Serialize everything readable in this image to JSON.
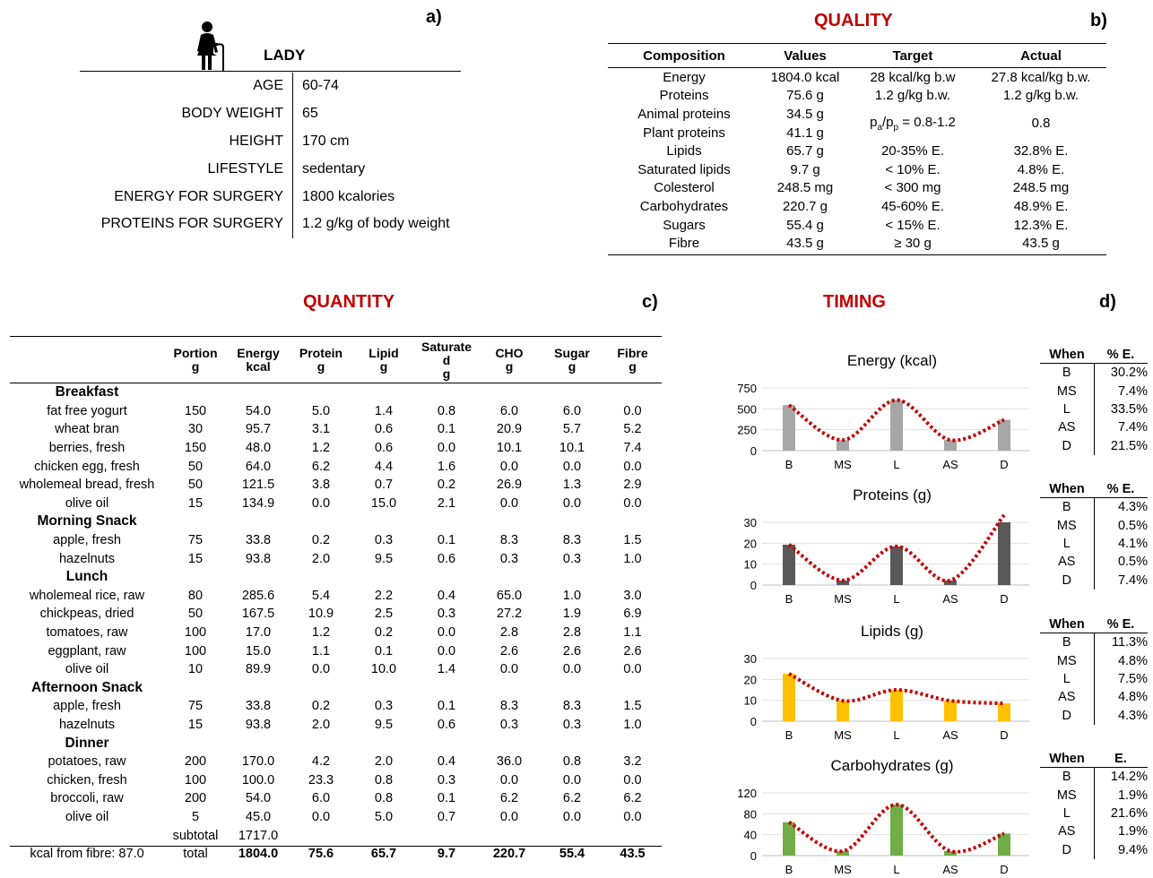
{
  "panel_a": {
    "letter": "a)",
    "title": "LADY",
    "rows": [
      {
        "key": "AGE",
        "value": "60-74"
      },
      {
        "key": "BODY WEIGHT",
        "value": "65"
      },
      {
        "key": "HEIGHT",
        "value": "170 cm"
      },
      {
        "key": "LIFESTYLE",
        "value": "sedentary"
      },
      {
        "key": "ENERGY FOR SURGERY",
        "value": "1800 kcalories"
      },
      {
        "key": "PROTEINS FOR SURGERY",
        "value": "1.2 g/kg of body weight"
      }
    ]
  },
  "panel_b": {
    "letter": "b)",
    "title": "QUALITY",
    "headers": [
      "Composition",
      "Values",
      "Target",
      "Actual"
    ],
    "rows": [
      [
        "Energy",
        "1804.0 kcal",
        "28 kcal/kg b.w",
        "27.8 kcal/kg b.w."
      ],
      [
        "Proteins",
        "75.6 g",
        "1.2 g/kg b.w.",
        "1.2 g/kg b.w."
      ],
      [
        "Animal proteins",
        "34.5 g",
        "",
        ""
      ],
      [
        "Plant proteins",
        "41.1 g",
        "",
        ""
      ],
      [
        "Lipids",
        "65.7 g",
        "20-35% E.",
        "32.8% E."
      ],
      [
        "Saturated lipids",
        "9.7 g",
        "< 10% E.",
        "4.8% E."
      ],
      [
        "Colesterol",
        "248.5 mg",
        "< 300 mg",
        "248.5 mg"
      ],
      [
        "Carbohydrates",
        "220.7 g",
        "45-60% E.",
        "48.9% E."
      ],
      [
        "Sugars",
        "55.4 g",
        "< 15% E.",
        "12.3% E."
      ],
      [
        "Fibre",
        "43.5 g",
        "≥ 30 g",
        "43.5 g"
      ]
    ],
    "ratio_target": {
      "p1": "p",
      "s1": "a",
      "slash": "/p",
      "s2": "p",
      "rest": " = 0.8-1.2"
    },
    "ratio_actual": "0.8"
  },
  "panel_c": {
    "letter": "c)",
    "title": "QUANTITY",
    "headers": [
      {
        "l1": "",
        "l2": ""
      },
      {
        "l1": "Portion",
        "l2": "g"
      },
      {
        "l1": "Energy",
        "l2": "kcal"
      },
      {
        "l1": "Protein",
        "l2": "g"
      },
      {
        "l1": "Lipid",
        "l2": "g"
      },
      {
        "l1": "Saturate",
        "l2": "d",
        "l3": "g"
      },
      {
        "l1": "CHO",
        "l2": "g"
      },
      {
        "l1": "Sugar",
        "l2": "g"
      },
      {
        "l1": "Fibre",
        "l2": "g"
      }
    ],
    "sections": [
      {
        "name": "Breakfast",
        "items": [
          [
            "fat free yogurt",
            "150",
            "54.0",
            "5.0",
            "1.4",
            "0.8",
            "6.0",
            "6.0",
            "0.0"
          ],
          [
            "wheat bran",
            "30",
            "95.7",
            "3.1",
            "0.6",
            "0.1",
            "20.9",
            "5.7",
            "5.2"
          ],
          [
            "berries, fresh",
            "150",
            "48.0",
            "1.2",
            "0.6",
            "0.0",
            "10.1",
            "10.1",
            "7.4"
          ],
          [
            "chicken egg, fresh",
            "50",
            "64.0",
            "6.2",
            "4.4",
            "1.6",
            "0.0",
            "0.0",
            "0.0"
          ],
          [
            "wholemeal bread, fresh",
            "50",
            "121.5",
            "3.8",
            "0.7",
            "0.2",
            "26.9",
            "1.3",
            "2.9"
          ],
          [
            "olive oil",
            "15",
            "134.9",
            "0.0",
            "15.0",
            "2.1",
            "0.0",
            "0.0",
            "0.0"
          ]
        ]
      },
      {
        "name": "Morning Snack",
        "items": [
          [
            "apple, fresh",
            "75",
            "33.8",
            "0.2",
            "0.3",
            "0.1",
            "8.3",
            "8.3",
            "1.5"
          ],
          [
            "hazelnuts",
            "15",
            "93.8",
            "2.0",
            "9.5",
            "0.6",
            "0.3",
            "0.3",
            "1.0"
          ]
        ]
      },
      {
        "name": "Lunch",
        "items": [
          [
            "wholemeal rice, raw",
            "80",
            "285.6",
            "5.4",
            "2.2",
            "0.4",
            "65.0",
            "1.0",
            "3.0"
          ],
          [
            "chickpeas, dried",
            "50",
            "167.5",
            "10.9",
            "2.5",
            "0.3",
            "27.2",
            "1.9",
            "6.9"
          ],
          [
            "tomatoes, raw",
            "100",
            "17.0",
            "1.2",
            "0.2",
            "0.0",
            "2.8",
            "2.8",
            "1.1"
          ],
          [
            "eggplant, raw",
            "100",
            "15.0",
            "1.1",
            "0.1",
            "0.0",
            "2.6",
            "2.6",
            "2.6"
          ],
          [
            "olive oil",
            "10",
            "89.9",
            "0.0",
            "10.0",
            "1.4",
            "0.0",
            "0.0",
            "0.0"
          ]
        ]
      },
      {
        "name": "Afternoon Snack",
        "items": [
          [
            "apple, fresh",
            "75",
            "33.8",
            "0.2",
            "0.3",
            "0.1",
            "8.3",
            "8.3",
            "1.5"
          ],
          [
            "hazelnuts",
            "15",
            "93.8",
            "2.0",
            "9.5",
            "0.6",
            "0.3",
            "0.3",
            "1.0"
          ]
        ]
      },
      {
        "name": "Dinner",
        "items": [
          [
            "potatoes, raw",
            "200",
            "170.0",
            "4.2",
            "2.0",
            "0.4",
            "36.0",
            "0.8",
            "3.2"
          ],
          [
            "chicken, fresh",
            "100",
            "100.0",
            "23.3",
            "0.8",
            "0.3",
            "0.0",
            "0.0",
            "0.0"
          ],
          [
            "broccoli, raw",
            "200",
            "54.0",
            "6.0",
            "0.8",
            "0.1",
            "6.2",
            "6.2",
            "6.2"
          ],
          [
            "olive oil",
            "5",
            "45.0",
            "0.0",
            "5.0",
            "0.7",
            "0.0",
            "0.0",
            "0.0"
          ]
        ]
      }
    ],
    "subtotal": {
      "label": "subtotal",
      "energy": "1717.0"
    },
    "total": {
      "fibre_note": "kcal from fibre: 87.0",
      "label": "total",
      "values": [
        "1804.0",
        "75.6",
        "65.7",
        "9.7",
        "220.7",
        "55.4",
        "43.5"
      ]
    }
  },
  "panel_d": {
    "letter": "d)",
    "title": "TIMING",
    "tables": [
      {
        "header": [
          "When",
          "% E."
        ],
        "rows": [
          [
            "B",
            "30.2%"
          ],
          [
            "MS",
            "7.4%"
          ],
          [
            "L",
            "33.5%"
          ],
          [
            "AS",
            "7.4%"
          ],
          [
            "D",
            "21.5%"
          ]
        ]
      },
      {
        "header": [
          "When",
          "% E."
        ],
        "rows": [
          [
            "B",
            "4.3%"
          ],
          [
            "MS",
            "0.5%"
          ],
          [
            "L",
            "4.1%"
          ],
          [
            "AS",
            "0.5%"
          ],
          [
            "D",
            "7.4%"
          ]
        ]
      },
      {
        "header": [
          "When",
          "% E."
        ],
        "rows": [
          [
            "B",
            "11.3%"
          ],
          [
            "MS",
            "4.8%"
          ],
          [
            "L",
            "7.5%"
          ],
          [
            "AS",
            "4.8%"
          ],
          [
            "D",
            "4.3%"
          ]
        ]
      },
      {
        "header": [
          "When",
          "E."
        ],
        "rows": [
          [
            "B",
            "14.2%"
          ],
          [
            "MS",
            "1.9%"
          ],
          [
            "L",
            "21.6%"
          ],
          [
            "AS",
            "1.9%"
          ],
          [
            "D",
            "9.4%"
          ]
        ]
      }
    ]
  },
  "chart_data": [
    {
      "type": "bar",
      "title": "Energy (kcal)",
      "categories": [
        "B",
        "MS",
        "L",
        "AS",
        "D"
      ],
      "values": [
        545,
        127,
        605,
        127,
        369
      ],
      "ylim": [
        0,
        750
      ],
      "yticks": [
        0,
        250,
        500,
        750
      ],
      "color": "#a6a6a6",
      "trend_color": "#c00000",
      "grid": true
    },
    {
      "type": "bar",
      "title": "Proteins (g)",
      "categories": [
        "B",
        "MS",
        "L",
        "AS",
        "D"
      ],
      "values": [
        19.3,
        2.2,
        18.5,
        2.2,
        33.5
      ],
      "ylim": [
        0,
        30
      ],
      "yticks": [
        0,
        10,
        20,
        30
      ],
      "color": "#595959",
      "trend_color": "#c00000",
      "grid": true
    },
    {
      "type": "bar",
      "title": "Lipids (g)",
      "categories": [
        "B",
        "MS",
        "L",
        "AS",
        "D"
      ],
      "values": [
        22.7,
        9.8,
        15.0,
        9.8,
        8.5
      ],
      "ylim": [
        0,
        30
      ],
      "yticks": [
        0,
        10,
        20,
        30
      ],
      "color": "#ffc000",
      "trend_color": "#c00000",
      "grid": true
    },
    {
      "type": "bar",
      "title": "Carbohydrates (g)",
      "categories": [
        "B",
        "MS",
        "L",
        "AS",
        "D"
      ],
      "values": [
        63.9,
        8.6,
        97.6,
        8.6,
        42.2
      ],
      "ylim": [
        0,
        120
      ],
      "yticks": [
        0,
        40,
        80,
        120
      ],
      "color": "#70ad47",
      "trend_color": "#c00000",
      "grid": true
    }
  ]
}
